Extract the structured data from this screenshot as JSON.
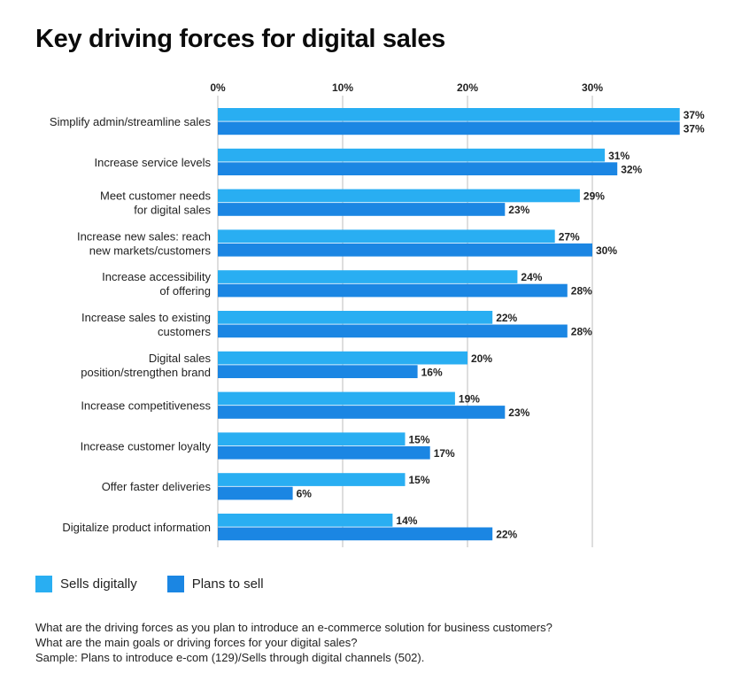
{
  "title": "Key driving forces for digital sales",
  "colors": {
    "sells": "#29aef2",
    "plans": "#1b86e3",
    "grid": "#bdbdbd"
  },
  "legend": [
    {
      "name": "Sells digitally",
      "color": "#29aef2"
    },
    {
      "name": "Plans to sell",
      "color": "#1b86e3"
    }
  ],
  "notes": [
    "What are the driving forces as you plan to introduce an e-commerce solution for business customers?",
    "What are the main goals or driving forces for your digital sales?",
    "Sample: Plans to introduce e-com (129)/Sells through digital channels (502)."
  ],
  "chart_data": {
    "type": "bar",
    "orientation": "horizontal",
    "title": "Key driving forces for digital sales",
    "xlim": [
      0,
      38
    ],
    "x_ticks": [
      "0%",
      "10%",
      "20%",
      "30%"
    ],
    "x_tick_values": [
      0,
      10,
      20,
      30
    ],
    "grid": true,
    "legend_position": "bottom-left",
    "categories": [
      [
        "Simplify admin/streamline sales"
      ],
      [
        "Increase service levels"
      ],
      [
        "Meet customer needs",
        "for digital sales"
      ],
      [
        "Increase new sales: reach",
        "new markets/customers"
      ],
      [
        "Increase accessibility",
        "of offering"
      ],
      [
        "Increase sales to existing",
        "customers"
      ],
      [
        "Digital sales",
        "position/strengthen brand"
      ],
      [
        "Increase competitiveness"
      ],
      [
        "Increase customer loyalty"
      ],
      [
        "Offer faster deliveries"
      ],
      [
        "Digitalize product information"
      ]
    ],
    "series": [
      {
        "name": "Sells digitally",
        "values": [
          37,
          31,
          29,
          27,
          24,
          22,
          20,
          19,
          15,
          15,
          14
        ],
        "labels": [
          "37%",
          "31%",
          "29%",
          "27%",
          "24%",
          "22%",
          "20%",
          "19%",
          "15%",
          "15%",
          "14%"
        ]
      },
      {
        "name": "Plans to sell",
        "values": [
          37,
          32,
          23,
          30,
          28,
          28,
          16,
          23,
          17,
          6,
          22
        ],
        "labels": [
          "37%",
          "32%",
          "23%",
          "30%",
          "28%",
          "28%",
          "16%",
          "23%",
          "17%",
          "6%",
          "22%"
        ]
      }
    ]
  }
}
